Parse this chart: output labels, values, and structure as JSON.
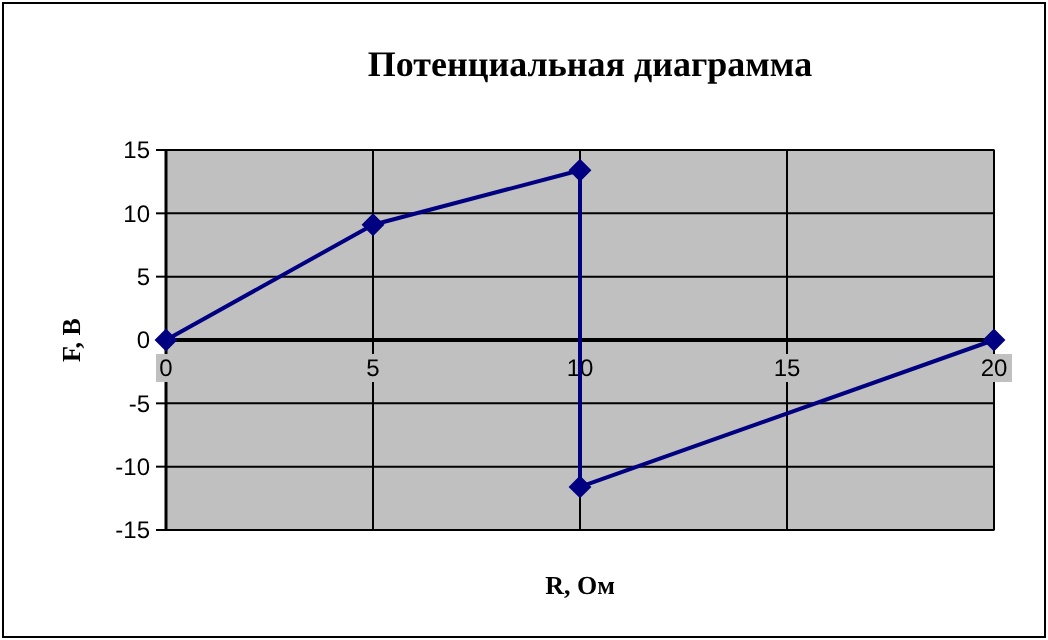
{
  "chart_data": {
    "type": "line",
    "title": "Потенциальная диаграмма",
    "xlabel": "R, Ом",
    "ylabel": "F, В",
    "x": [
      0,
      5,
      10,
      10,
      20
    ],
    "series": [
      {
        "color": "#000080",
        "values": [
          0,
          9.1,
          13.4,
          -11.6,
          0
        ]
      }
    ],
    "xlim": [
      0,
      20
    ],
    "xticks": [
      0,
      5,
      10,
      15,
      20
    ],
    "ylim": [
      -15,
      15
    ],
    "yticks": [
      -15,
      -10,
      -5,
      0,
      5,
      10,
      15
    ],
    "grid": true,
    "marker": "diamond",
    "line_style": "solid"
  }
}
